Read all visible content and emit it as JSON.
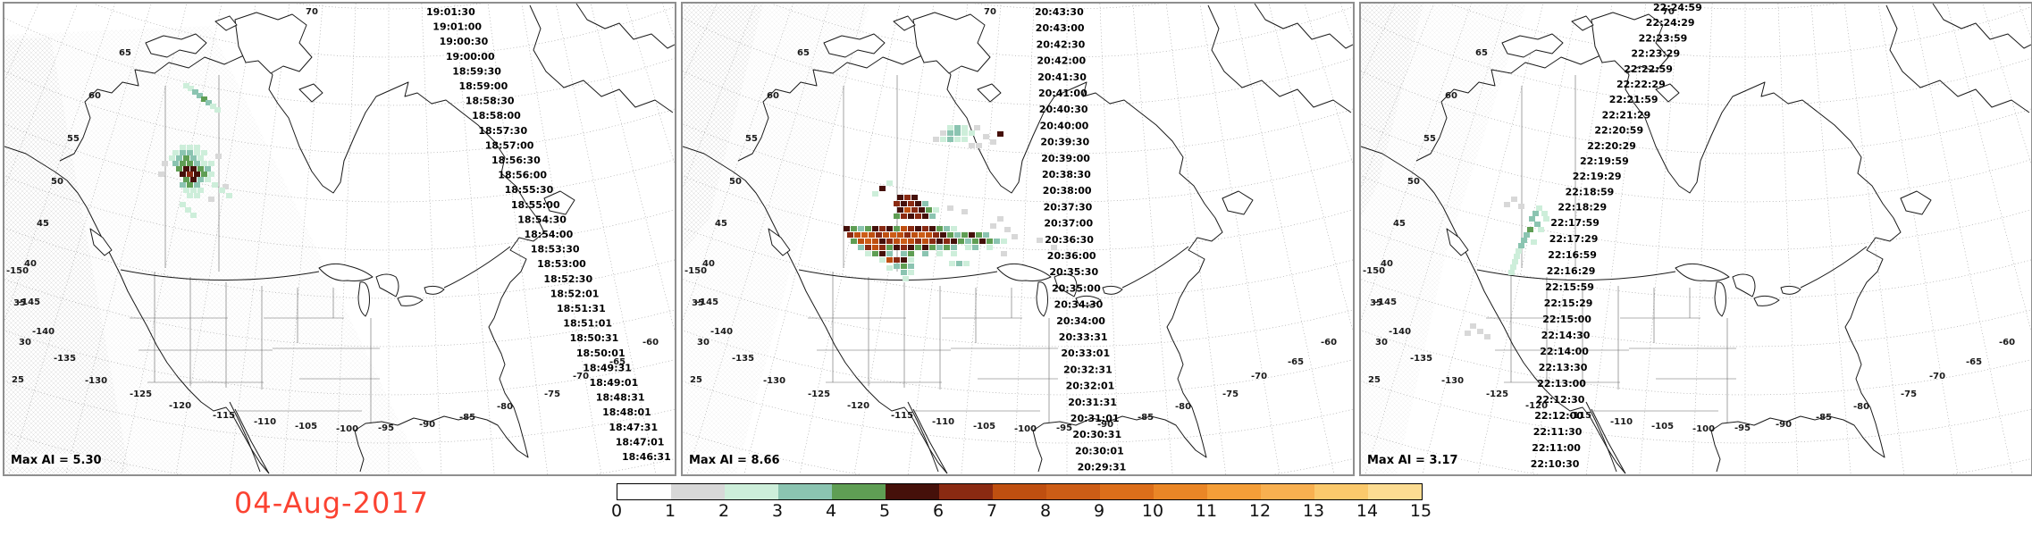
{
  "date_label": "04-Aug-2017",
  "date_color": "#fb4332",
  "colorbar": {
    "ticks": [
      "0",
      "1",
      "2",
      "3",
      "4",
      "5",
      "6",
      "7",
      "8",
      "9",
      "10",
      "11",
      "12",
      "13",
      "14",
      "15"
    ],
    "segment_colors": [
      "#ffffff",
      "#d8d8d8",
      "#cdeeda",
      "#8bc4b1",
      "#5f9e54",
      "#45100a",
      "#8a2a12",
      "#bf4f10",
      "#cd5d16",
      "#dc6e1a",
      "#ea8626",
      "#f49e38",
      "#f8b050",
      "#fbc96c",
      "#fcdc92"
    ]
  },
  "graticule": {
    "lat_labels": [
      "70",
      "65",
      "60",
      "55",
      "50",
      "45",
      "40",
      "35",
      "30",
      "25"
    ],
    "lon_labels": [
      "-150",
      "-145",
      "-140",
      "-135",
      "-130",
      "-125",
      "-120",
      "-115",
      "-110",
      "-105",
      "-100",
      "-95",
      "-90",
      "-85",
      "-80",
      "-75",
      "-70",
      "-65",
      "-60"
    ]
  },
  "panels": [
    {
      "max_ai_label": "Max AI =  5.30",
      "max_ai_value": "5.30",
      "timestamps": [
        "19:01:30",
        "19:01:00",
        "19:00:30",
        "19:00:00",
        "18:59:30",
        "18:59:00",
        "18:58:30",
        "18:58:00",
        "18:57:30",
        "18:57:00",
        "18:56:30",
        "18:56:00",
        "18:55:30",
        "18:55:00",
        "18:54:30",
        "18:54:00",
        "18:53:30",
        "18:53:00",
        "18:52:30",
        "18:52:01",
        "18:51:31",
        "18:51:01",
        "18:50:31",
        "18:50:01",
        "18:49:31",
        "18:49:01",
        "18:48:31",
        "18:48:01",
        "18:47:31",
        "18:47:01",
        "18:46:31"
      ],
      "cells": [
        [
          205,
          92,
          2
        ],
        [
          210,
          96,
          3
        ],
        [
          215,
          100,
          3
        ],
        [
          220,
          104,
          4
        ],
        [
          225,
          108,
          3
        ],
        [
          230,
          112,
          2
        ],
        [
          235,
          116,
          2
        ],
        [
          200,
          89,
          2
        ],
        [
          196,
          158,
          2
        ],
        [
          204,
          158,
          2
        ],
        [
          212,
          158,
          2
        ],
        [
          188,
          164,
          2
        ],
        [
          196,
          164,
          3
        ],
        [
          204,
          164,
          3
        ],
        [
          212,
          164,
          2
        ],
        [
          220,
          164,
          2
        ],
        [
          184,
          170,
          2
        ],
        [
          192,
          170,
          3
        ],
        [
          200,
          170,
          4
        ],
        [
          208,
          170,
          3
        ],
        [
          216,
          170,
          2
        ],
        [
          236,
          168,
          1
        ],
        [
          188,
          176,
          3
        ],
        [
          196,
          176,
          4
        ],
        [
          204,
          176,
          4
        ],
        [
          212,
          176,
          3
        ],
        [
          220,
          176,
          2
        ],
        [
          228,
          176,
          2
        ],
        [
          176,
          176,
          1
        ],
        [
          192,
          182,
          4
        ],
        [
          200,
          182,
          5
        ],
        [
          208,
          182,
          5
        ],
        [
          216,
          182,
          4
        ],
        [
          224,
          182,
          3
        ],
        [
          196,
          188,
          5
        ],
        [
          204,
          188,
          6
        ],
        [
          212,
          188,
          5
        ],
        [
          220,
          188,
          4
        ],
        [
          228,
          188,
          2
        ],
        [
          172,
          188,
          1
        ],
        [
          200,
          194,
          4
        ],
        [
          208,
          194,
          5
        ],
        [
          216,
          194,
          3
        ],
        [
          224,
          194,
          2
        ],
        [
          196,
          200,
          3
        ],
        [
          204,
          200,
          4
        ],
        [
          212,
          200,
          3
        ],
        [
          232,
          200,
          2
        ],
        [
          244,
          202,
          1
        ],
        [
          200,
          206,
          2
        ],
        [
          208,
          206,
          2
        ],
        [
          216,
          206,
          2
        ],
        [
          240,
          206,
          2
        ],
        [
          204,
          212,
          2
        ],
        [
          212,
          212,
          2
        ],
        [
          248,
          212,
          2
        ],
        [
          228,
          216,
          1
        ],
        [
          196,
          222,
          2
        ],
        [
          202,
          228,
          2
        ],
        [
          208,
          234,
          2
        ]
      ]
    },
    {
      "max_ai_label": "Max AI =  8.66",
      "max_ai_value": "8.66",
      "timestamps": [
        "20:43:30",
        "20:43:00",
        "20:42:30",
        "20:42:00",
        "20:41:30",
        "20:41:00",
        "20:40:30",
        "20:40:00",
        "20:39:30",
        "20:39:00",
        "20:38:30",
        "20:38:00",
        "20:37:30",
        "20:37:00",
        "20:36:30",
        "20:36:00",
        "20:35:30",
        "20:35:00",
        "20:34:30",
        "20:34:00",
        "20:33:31",
        "20:33:01",
        "20:32:31",
        "20:32:01",
        "20:31:31",
        "20:31:01",
        "20:30:31",
        "20:30:01",
        "20:29:31"
      ],
      "cells": [
        [
          296,
          136,
          2
        ],
        [
          304,
          136,
          3
        ],
        [
          312,
          136,
          2
        ],
        [
          288,
          142,
          1
        ],
        [
          296,
          142,
          3
        ],
        [
          304,
          142,
          3
        ],
        [
          312,
          142,
          2
        ],
        [
          320,
          142,
          2
        ],
        [
          280,
          149,
          1
        ],
        [
          288,
          149,
          2
        ],
        [
          296,
          149,
          3
        ],
        [
          304,
          149,
          2
        ],
        [
          336,
          146,
          1
        ],
        [
          344,
          152,
          1
        ],
        [
          328,
          156,
          1
        ],
        [
          352,
          143,
          5
        ],
        [
          326,
          136,
          1
        ],
        [
          312,
          149,
          2
        ],
        [
          320,
          156,
          1
        ],
        [
          220,
          204,
          5
        ],
        [
          228,
          198,
          2
        ],
        [
          212,
          210,
          2
        ],
        [
          240,
          214,
          5
        ],
        [
          248,
          214,
          6
        ],
        [
          256,
          214,
          5
        ],
        [
          236,
          221,
          6
        ],
        [
          244,
          221,
          5
        ],
        [
          252,
          221,
          6
        ],
        [
          260,
          221,
          5
        ],
        [
          268,
          221,
          3
        ],
        [
          240,
          228,
          5
        ],
        [
          248,
          228,
          7
        ],
        [
          256,
          228,
          6
        ],
        [
          264,
          228,
          5
        ],
        [
          272,
          228,
          4
        ],
        [
          280,
          228,
          2
        ],
        [
          296,
          226,
          1
        ],
        [
          312,
          230,
          1
        ],
        [
          236,
          235,
          4
        ],
        [
          244,
          235,
          6
        ],
        [
          252,
          235,
          5
        ],
        [
          260,
          235,
          6
        ],
        [
          268,
          235,
          5
        ],
        [
          276,
          235,
          3
        ],
        [
          352,
          238,
          1
        ],
        [
          180,
          249,
          5
        ],
        [
          188,
          249,
          4
        ],
        [
          196,
          249,
          3
        ],
        [
          204,
          249,
          4
        ],
        [
          212,
          249,
          5
        ],
        [
          220,
          249,
          6
        ],
        [
          228,
          249,
          5
        ],
        [
          236,
          249,
          4
        ],
        [
          244,
          249,
          7
        ],
        [
          252,
          249,
          6
        ],
        [
          260,
          249,
          5
        ],
        [
          268,
          249,
          6
        ],
        [
          276,
          249,
          5
        ],
        [
          284,
          249,
          4
        ],
        [
          292,
          249,
          3
        ],
        [
          300,
          249,
          2
        ],
        [
          344,
          246,
          1
        ],
        [
          360,
          250,
          1
        ],
        [
          184,
          256,
          6
        ],
        [
          192,
          256,
          7
        ],
        [
          200,
          256,
          8
        ],
        [
          208,
          256,
          7
        ],
        [
          216,
          256,
          6
        ],
        [
          224,
          256,
          7
        ],
        [
          232,
          256,
          8
        ],
        [
          240,
          256,
          7
        ],
        [
          248,
          256,
          6
        ],
        [
          256,
          256,
          7
        ],
        [
          264,
          256,
          8
        ],
        [
          272,
          256,
          7
        ],
        [
          280,
          256,
          6
        ],
        [
          288,
          256,
          5
        ],
        [
          296,
          256,
          4
        ],
        [
          304,
          256,
          3
        ],
        [
          312,
          256,
          4
        ],
        [
          320,
          256,
          5
        ],
        [
          328,
          256,
          4
        ],
        [
          336,
          256,
          3
        ],
        [
          368,
          258,
          1
        ],
        [
          188,
          263,
          4
        ],
        [
          196,
          263,
          7
        ],
        [
          204,
          263,
          8
        ],
        [
          212,
          263,
          7
        ],
        [
          220,
          263,
          5
        ],
        [
          228,
          263,
          6
        ],
        [
          236,
          263,
          7
        ],
        [
          244,
          263,
          8
        ],
        [
          252,
          263,
          7
        ],
        [
          260,
          263,
          6
        ],
        [
          268,
          263,
          7
        ],
        [
          276,
          263,
          6
        ],
        [
          284,
          263,
          5
        ],
        [
          292,
          263,
          6
        ],
        [
          300,
          263,
          5
        ],
        [
          308,
          263,
          4
        ],
        [
          316,
          263,
          3
        ],
        [
          324,
          263,
          4
        ],
        [
          332,
          263,
          5
        ],
        [
          340,
          263,
          4
        ],
        [
          348,
          263,
          3
        ],
        [
          356,
          263,
          2
        ],
        [
          396,
          262,
          1
        ],
        [
          196,
          270,
          3
        ],
        [
          204,
          270,
          6
        ],
        [
          212,
          270,
          7
        ],
        [
          220,
          270,
          6
        ],
        [
          228,
          270,
          4
        ],
        [
          236,
          270,
          5
        ],
        [
          244,
          270,
          6
        ],
        [
          252,
          270,
          5
        ],
        [
          260,
          270,
          4
        ],
        [
          268,
          270,
          5
        ],
        [
          276,
          270,
          4
        ],
        [
          284,
          270,
          3
        ],
        [
          292,
          270,
          4
        ],
        [
          300,
          270,
          3
        ],
        [
          316,
          270,
          2
        ],
        [
          324,
          270,
          3
        ],
        [
          340,
          270,
          2
        ],
        [
          412,
          270,
          1
        ],
        [
          204,
          277,
          2
        ],
        [
          212,
          277,
          4
        ],
        [
          220,
          277,
          5
        ],
        [
          228,
          277,
          3
        ],
        [
          244,
          277,
          3
        ],
        [
          252,
          277,
          4
        ],
        [
          268,
          277,
          3
        ],
        [
          284,
          277,
          2
        ],
        [
          300,
          277,
          2
        ],
        [
          356,
          277,
          1
        ],
        [
          428,
          278,
          1
        ],
        [
          220,
          284,
          2
        ],
        [
          228,
          284,
          7
        ],
        [
          236,
          284,
          6
        ],
        [
          244,
          284,
          5
        ],
        [
          252,
          284,
          2
        ],
        [
          298,
          288,
          2
        ],
        [
          306,
          288,
          3
        ],
        [
          314,
          288,
          2
        ],
        [
          236,
          291,
          3
        ],
        [
          244,
          291,
          4
        ],
        [
          252,
          291,
          3
        ],
        [
          228,
          293,
          2
        ],
        [
          244,
          298,
          3
        ],
        [
          252,
          298,
          2
        ],
        [
          246,
          305,
          2
        ]
      ]
    },
    {
      "max_ai_label": "Max AI =  3.17",
      "max_ai_value": "3.17",
      "timestamps": [
        "22:24:59",
        "22:24:29",
        "22:23:59",
        "22:23:29",
        "22:22:59",
        "22:22:29",
        "22:21:59",
        "22:21:29",
        "22:20:59",
        "22:20:29",
        "22:19:59",
        "22:19:29",
        "22:18:59",
        "22:18:29",
        "22:17:59",
        "22:17:29",
        "22:16:59",
        "22:16:29",
        "22:15:59",
        "22:15:29",
        "22:15:00",
        "22:14:30",
        "22:14:00",
        "22:13:30",
        "22:13:00",
        "22:12:30",
        "22:12:00",
        "22:11:30",
        "22:11:00",
        "22:10:30"
      ],
      "cells": [
        [
          160,
          222,
          1
        ],
        [
          168,
          216,
          1
        ],
        [
          176,
          224,
          1
        ],
        [
          196,
          226,
          2
        ],
        [
          202,
          232,
          2
        ],
        [
          192,
          232,
          3
        ],
        [
          188,
          238,
          3
        ],
        [
          194,
          244,
          3
        ],
        [
          186,
          250,
          4
        ],
        [
          182,
          256,
          3
        ],
        [
          179,
          262,
          3
        ],
        [
          176,
          268,
          3
        ],
        [
          173,
          274,
          2
        ],
        [
          171,
          280,
          2
        ],
        [
          169,
          286,
          2
        ],
        [
          167,
          292,
          2
        ],
        [
          204,
          238,
          2
        ],
        [
          198,
          250,
          2
        ],
        [
          190,
          264,
          2
        ],
        [
          165,
          298,
          2
        ],
        [
          122,
          358,
          1
        ],
        [
          130,
          364,
          1
        ],
        [
          116,
          366,
          1
        ],
        [
          138,
          370,
          1
        ]
      ]
    }
  ]
}
